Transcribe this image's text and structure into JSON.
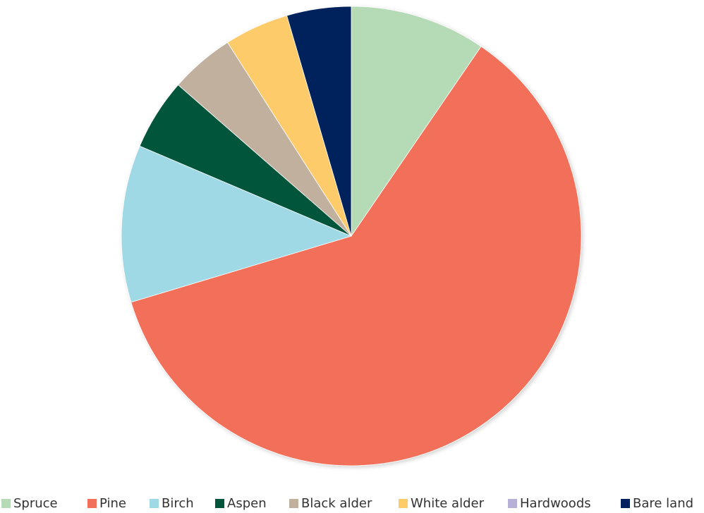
{
  "chart_data": {
    "type": "pie",
    "title": "",
    "legend_position": "bottom",
    "slices": [
      {
        "label": "Spruce",
        "value": 9.5,
        "color": "#b5dbb6"
      },
      {
        "label": "Pine",
        "value": 60.5,
        "color": "#f26f5a"
      },
      {
        "label": "Birch",
        "value": 11.0,
        "color": "#9fd9e5"
      },
      {
        "label": "Aspen",
        "value": 5.0,
        "color": "#00543a"
      },
      {
        "label": "Black alder",
        "value": 4.5,
        "color": "#c2b09f"
      },
      {
        "label": "White alder",
        "value": 4.5,
        "color": "#fecb6a"
      },
      {
        "label": "Hardwoods",
        "value": 0.0,
        "color": "#b7b1d8"
      },
      {
        "label": "Bare land",
        "value": 4.5,
        "color": "#01205c"
      }
    ]
  }
}
